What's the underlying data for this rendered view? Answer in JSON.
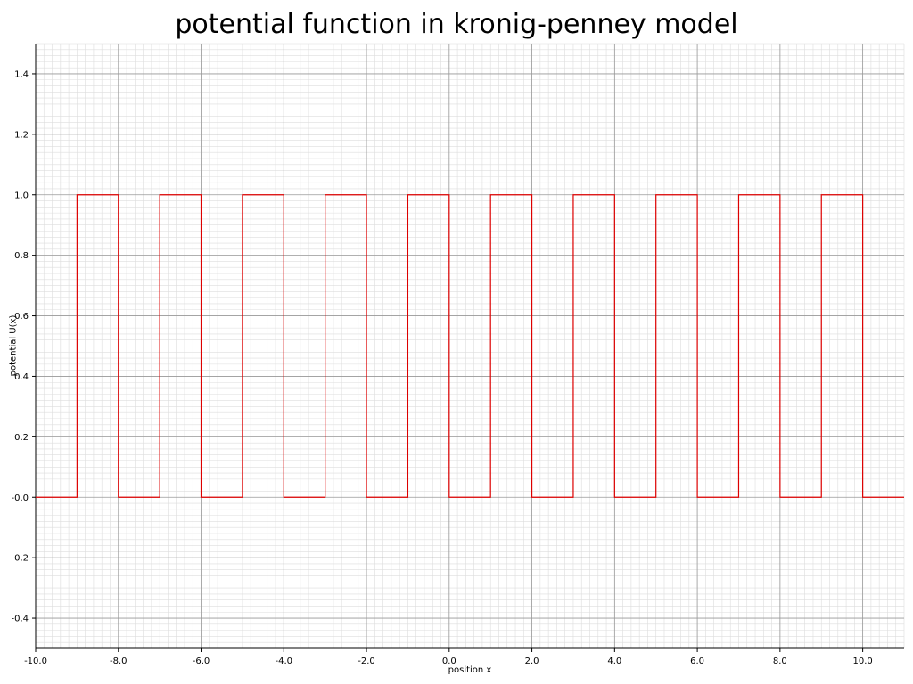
{
  "chart_data": {
    "type": "line",
    "title": "potential function in kronig-penney model",
    "xlabel": "position x",
    "ylabel": "potential U(x)",
    "xlim": [
      -10,
      11
    ],
    "ylim": [
      -0.5,
      1.5
    ],
    "x_ticks": [
      -10,
      -8,
      -6,
      -4,
      -2,
      0,
      2,
      4,
      6,
      8,
      10
    ],
    "x_tick_labels": [
      "-10.0",
      "-8.0",
      "-6.0",
      "-4.0",
      "-2.0",
      "0.0",
      "2.0",
      "4.0",
      "6.0",
      "8.0",
      "10.0"
    ],
    "y_ticks": [
      -0.4,
      -0.2,
      0.0,
      0.2,
      0.4,
      0.6,
      0.8,
      1.0,
      1.2,
      1.4
    ],
    "y_tick_labels": [
      "-0.4",
      "-0.2",
      "-0.0",
      "0.2",
      "0.4",
      "0.6",
      "0.8",
      "1.0",
      "1.2",
      "1.4"
    ],
    "grid": true,
    "legend": "none",
    "colors": {
      "series": "#dd0000",
      "major_grid": "#999999",
      "minor_grid": "#dddddd",
      "axis": "#000000"
    },
    "series": [
      {
        "color": "#dd0000",
        "points": [
          [
            -10,
            0
          ],
          [
            -9,
            0
          ],
          [
            -9,
            1
          ],
          [
            -8,
            1
          ],
          [
            -8,
            0
          ],
          [
            -7,
            0
          ],
          [
            -7,
            1
          ],
          [
            -6,
            1
          ],
          [
            -6,
            0
          ],
          [
            -5,
            0
          ],
          [
            -5,
            1
          ],
          [
            -4,
            1
          ],
          [
            -4,
            0
          ],
          [
            -3,
            0
          ],
          [
            -3,
            1
          ],
          [
            -2,
            1
          ],
          [
            -2,
            0
          ],
          [
            -1,
            0
          ],
          [
            -1,
            1
          ],
          [
            0,
            1
          ],
          [
            0,
            0
          ],
          [
            1,
            0
          ],
          [
            1,
            1
          ],
          [
            2,
            1
          ],
          [
            2,
            0
          ],
          [
            3,
            0
          ],
          [
            3,
            1
          ],
          [
            4,
            1
          ],
          [
            4,
            0
          ],
          [
            5,
            0
          ],
          [
            5,
            1
          ],
          [
            6,
            1
          ],
          [
            6,
            0
          ],
          [
            7,
            0
          ],
          [
            7,
            1
          ],
          [
            8,
            1
          ],
          [
            8,
            0
          ],
          [
            9,
            0
          ],
          [
            9,
            1
          ],
          [
            10,
            1
          ],
          [
            10,
            0
          ],
          [
            11,
            0
          ]
        ]
      }
    ]
  }
}
